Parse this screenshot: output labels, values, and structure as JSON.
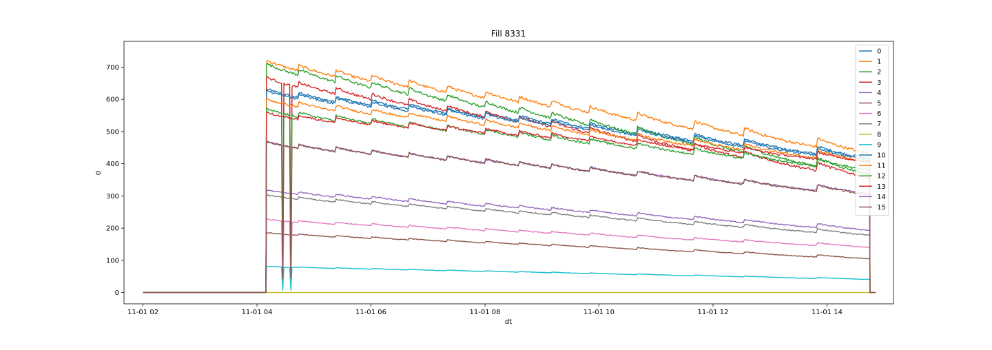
{
  "chart_data": {
    "type": "line",
    "title": "Fill 8331",
    "xlabel": "dt",
    "ylabel": "0",
    "x_ticks": [
      "11-01 02",
      "11-01 04",
      "11-01 06",
      "11-01 08",
      "11-01 10",
      "11-01 12",
      "11-01 14"
    ],
    "y_ticks": [
      0,
      100,
      200,
      300,
      400,
      500,
      600,
      700
    ],
    "xlim": [
      "2023-11-01T01:40",
      "2023-11-01T15:10"
    ],
    "ylim": [
      -35,
      780
    ],
    "grid": false,
    "legend_position": "top-right",
    "x_start": "2023-11-01T02:00",
    "x_beam_on": "2023-11-01T04:10",
    "x_end": "2023-11-01T14:45",
    "refill_times": [
      "2023-11-01T04:43",
      "2023-11-01T05:23",
      "2023-11-01T06:00",
      "2023-11-01T06:40",
      "2023-11-01T07:20",
      "2023-11-01T08:00",
      "2023-11-01T08:35",
      "2023-11-01T09:10",
      "2023-11-01T09:50",
      "2023-11-01T10:40",
      "2023-11-01T11:40",
      "2023-11-01T12:32",
      "2023-11-01T13:50"
    ],
    "series": [
      {
        "name": "0",
        "color": "#1f77b4",
        "start": 605,
        "end": 410
      },
      {
        "name": "1",
        "color": "#ff7f0e",
        "start": 690,
        "end": 425
      },
      {
        "name": "2",
        "color": "#2ca02c",
        "start": 680,
        "end": 360
      },
      {
        "name": "3",
        "color": "#d62728",
        "start": 640,
        "end": 350
      },
      {
        "name": "4",
        "color": "#9467bd",
        "start": 305,
        "end": 190
      },
      {
        "name": "5",
        "color": "#8c564b",
        "start": 178,
        "end": 103
      },
      {
        "name": "6",
        "color": "#e377c2",
        "start": 218,
        "end": 138
      },
      {
        "name": "7",
        "color": "#7f7f7f",
        "start": 290,
        "end": 175
      },
      {
        "name": "8",
        "color": "#bcbd22",
        "start": 0,
        "end": 0
      },
      {
        "name": "9",
        "color": "#17becf",
        "start": 78,
        "end": 40
      },
      {
        "name": "10",
        "color": "#1f77b4",
        "start": 600,
        "end": 405
      },
      {
        "name": "11",
        "color": "#ff7f0e",
        "start": 575,
        "end": 400
      },
      {
        "name": "12",
        "color": "#2ca02c",
        "start": 545,
        "end": 375
      },
      {
        "name": "13",
        "color": "#d62728",
        "start": 535,
        "end": 400
      },
      {
        "name": "14",
        "color": "#9467bd",
        "start": 448,
        "end": 302
      },
      {
        "name": "15",
        "color": "#8c564b",
        "start": 448,
        "end": 300
      }
    ]
  }
}
